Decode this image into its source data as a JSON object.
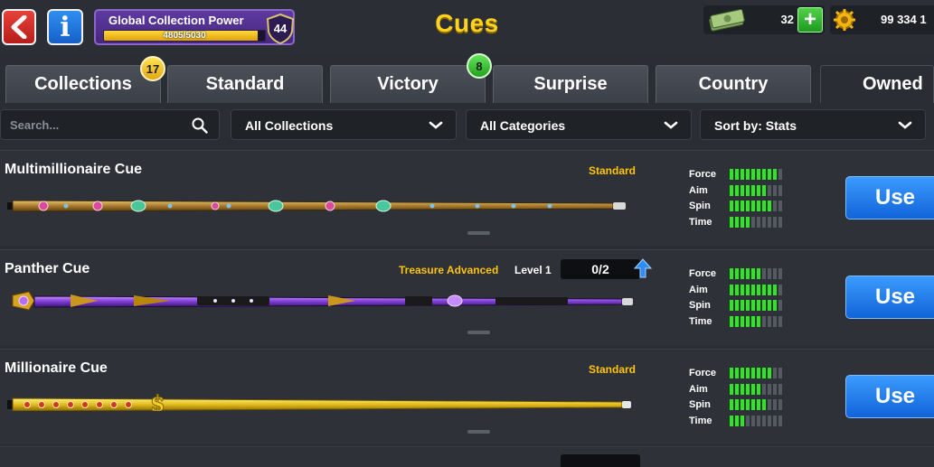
{
  "header": {
    "title": "Cues",
    "back_icon": "back-arrow-icon",
    "info_icon": "info-icon",
    "collection_power": {
      "label": "Global Collection Power",
      "progress_text": "4805/5030",
      "current": 4805,
      "max": 5030,
      "level": "44"
    },
    "cash": {
      "value": "32",
      "icon": "cash-icon",
      "add_icon": "plus-icon"
    },
    "coins": {
      "value": "99 334 1",
      "icon": "coin-icon"
    }
  },
  "tabs": [
    {
      "label": "Collections",
      "badge": "17",
      "badge_color": "#f2c21a"
    },
    {
      "label": "Standard"
    },
    {
      "label": "Victory",
      "badge": "8",
      "badge_color": "#3fc333"
    },
    {
      "label": "Surprise"
    },
    {
      "label": "Country"
    },
    {
      "label": "Owned",
      "active": true
    }
  ],
  "filters": {
    "search_placeholder": "Search...",
    "search_value": "",
    "collections": "All Collections",
    "categories": "All Categories",
    "sort": "Sort by: Stats"
  },
  "stat_labels": [
    "Force",
    "Aim",
    "Spin",
    "Time"
  ],
  "cues": [
    {
      "name": "Multimillionaire Cue",
      "collection": "Standard",
      "stats": {
        "force": 9,
        "aim": 7,
        "spin": 8,
        "time": 4
      },
      "stat_max": 10,
      "button": "Use",
      "style": "gold-jeweled"
    },
    {
      "name": "Panther Cue",
      "collection": "Treasure Advanced",
      "level": "Level 1",
      "progress": "0/2",
      "stats": {
        "force": 6,
        "aim": 9,
        "spin": 9,
        "time": 6
      },
      "stat_max": 10,
      "button": "Use",
      "style": "purple"
    },
    {
      "name": "Millionaire Cue",
      "collection": "Standard",
      "stats": {
        "force": 8,
        "aim": 6,
        "spin": 7,
        "time": 3
      },
      "stat_max": 10,
      "button": "Use",
      "style": "gold"
    }
  ],
  "colors": {
    "accent_gold": "#ffd21e",
    "stat_on": "#2ee622",
    "use_button": "#1f7ff0",
    "tab_bg": "#434851"
  }
}
